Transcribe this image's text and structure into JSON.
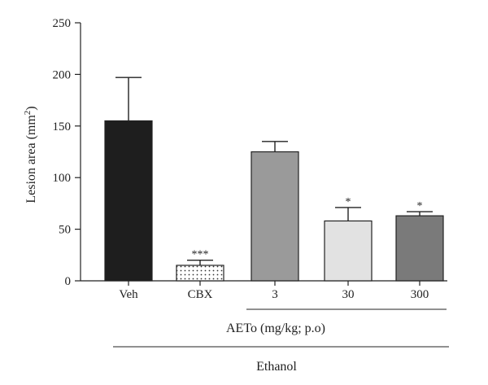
{
  "chart_data": {
    "type": "bar",
    "categories": [
      "Veh",
      "CBX",
      "3",
      "30",
      "300"
    ],
    "values": [
      155,
      15,
      125,
      58,
      63
    ],
    "errors": [
      42,
      5,
      10,
      13,
      4
    ],
    "significance": [
      "",
      "***",
      "",
      "*",
      "*"
    ],
    "fills": [
      "#1e1e1e",
      "pattern-dots",
      "#9a9a9a",
      "#e2e2e2",
      "#7a7a7a"
    ],
    "ylabel": "Lesion area (mm",
    "ylabel_sup": "2",
    "ylabel_close": ")",
    "ylim": [
      0,
      250
    ],
    "yticks": [
      0,
      50,
      100,
      150,
      200,
      250
    ],
    "group_label_1": "AETo (mg/kg; p.o)",
    "group_label_2": "Ethanol",
    "grid": false
  }
}
